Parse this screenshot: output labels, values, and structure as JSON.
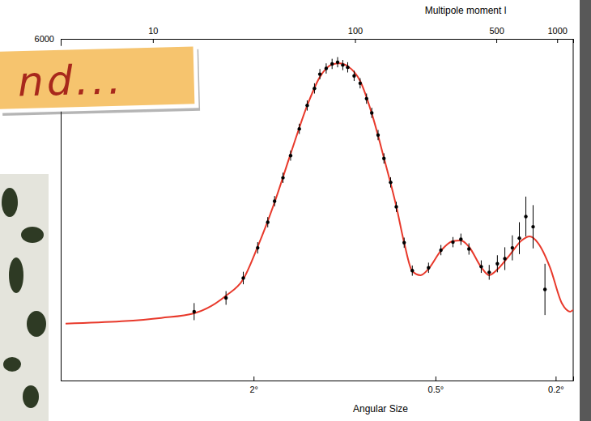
{
  "chart_data": {
    "type": "scatter",
    "x_label": "Multipole moment l",
    "x2_label": "Angular Size",
    "annotations": [
      "nd..."
    ],
    "log": "x",
    "grid": false,
    "xlim": [
      3.5,
      1200
    ],
    "xticks": [
      10,
      100,
      500,
      1000
    ],
    "x2lim": [
      8.7,
      0.175
    ],
    "x2ticks": [
      {
        "value": 2,
        "label": "2°"
      },
      {
        "value": 0.5,
        "label": "0.5°"
      },
      {
        "value": 0.2,
        "label": "0.2°"
      }
    ],
    "ylim": [
      0,
      6000
    ],
    "yticks": [
      6000
    ],
    "series": [
      {
        "type": "line",
        "color": "#e8392b",
        "line_style": "solid",
        "x": [
          3.7,
          7,
          11,
          16,
          23,
          28,
          33,
          40,
          48,
          58,
          67,
          77,
          84,
          92,
          106,
          121,
          139,
          160,
          175,
          192,
          211,
          231,
          266,
          305,
          334,
          366,
          421,
          461,
          506,
          581,
          667,
          731,
          802,
          921,
          1057,
          1159,
          1200
        ],
        "values": [
          1000,
          1040,
          1100,
          1180,
          1490,
          1780,
          2350,
          3130,
          3980,
          4830,
          5330,
          5550,
          5570,
          5520,
          5260,
          4690,
          3910,
          3060,
          2420,
          1920,
          1850,
          1960,
          2280,
          2450,
          2460,
          2350,
          1990,
          1850,
          1950,
          2200,
          2460,
          2530,
          2420,
          1990,
          1350,
          1210,
          1240
        ]
      },
      {
        "type": "scatter",
        "color": "#000000",
        "marker": "circle",
        "x": [
          16,
          23,
          28,
          33,
          37,
          40,
          44,
          48,
          53,
          58,
          63,
          67,
          72,
          77,
          82,
          87,
          92,
          99,
          106,
          114,
          121,
          130,
          139,
          150,
          160,
          175,
          192,
          231,
          266,
          305,
          334,
          366,
          421,
          461,
          506,
          551,
          600,
          650,
          700,
          760,
          870
        ],
        "values": [
          1210,
          1450,
          1800,
          2330,
          2780,
          3150,
          3560,
          3950,
          4420,
          4830,
          5130,
          5380,
          5480,
          5560,
          5590,
          5540,
          5500,
          5350,
          5220,
          4950,
          4700,
          4310,
          3900,
          3480,
          3050,
          2420,
          1930,
          1980,
          2290,
          2430,
          2480,
          2310,
          2000,
          1900,
          2050,
          2140,
          2330,
          2500,
          2880,
          2700,
          1600
        ],
        "errors": [
          150,
          120,
          110,
          100,
          90,
          90,
          90,
          90,
          90,
          90,
          90,
          90,
          90,
          90,
          90,
          90,
          90,
          90,
          90,
          90,
          90,
          90,
          90,
          90,
          90,
          90,
          90,
          90,
          90,
          90,
          100,
          100,
          110,
          130,
          150,
          200,
          220,
          280,
          350,
          380,
          450
        ]
      }
    ]
  }
}
